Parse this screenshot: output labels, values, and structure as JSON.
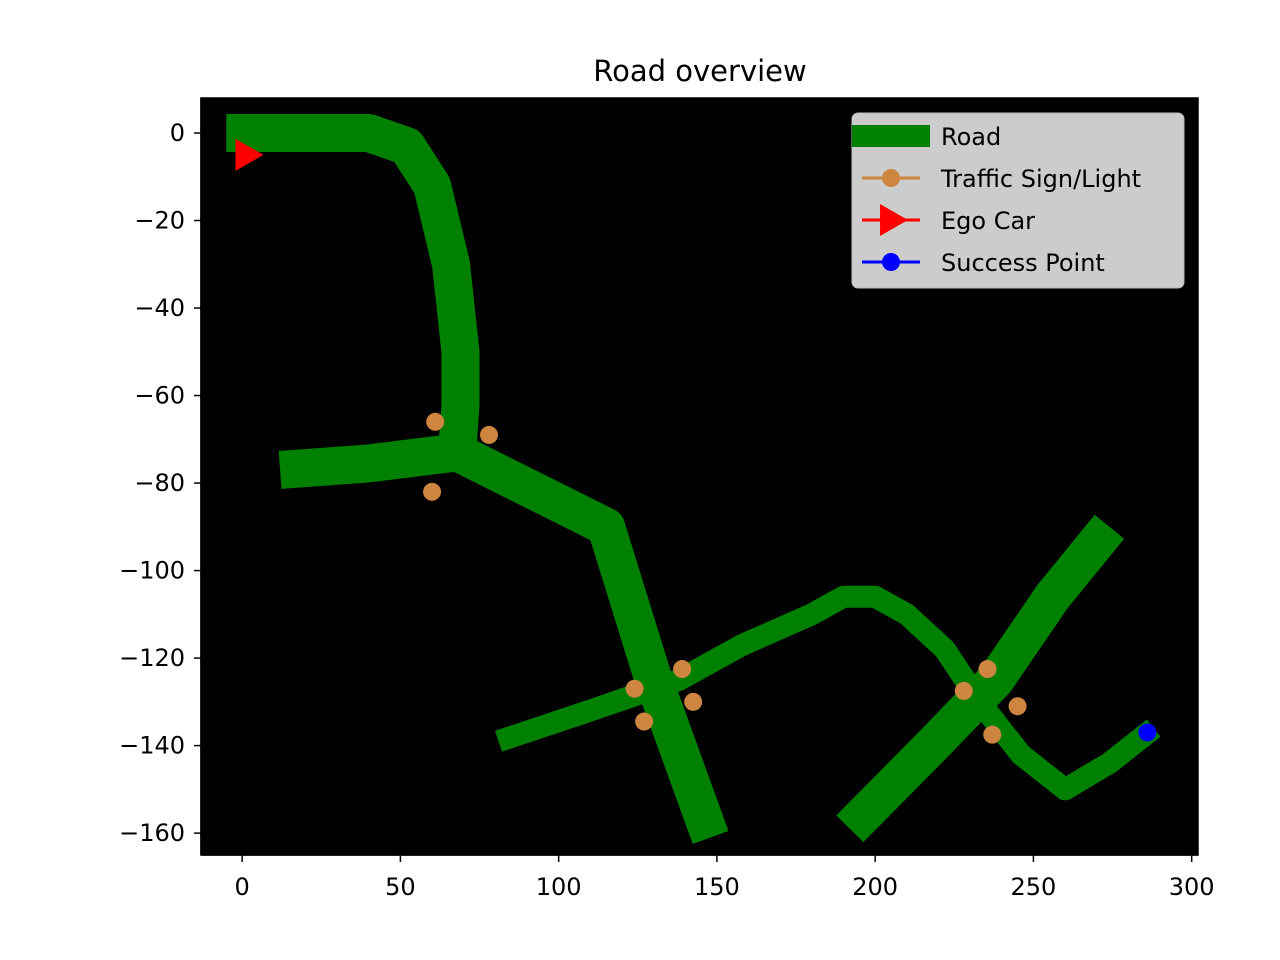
{
  "chart_data": {
    "type": "map",
    "title": "Road overview",
    "xlim": [
      -13,
      302
    ],
    "ylim": [
      -165,
      8
    ],
    "x_ticks": [
      0,
      50,
      100,
      150,
      200,
      250,
      300
    ],
    "y_ticks": [
      0,
      -20,
      -40,
      -60,
      -80,
      -100,
      -120,
      -140,
      -160
    ],
    "x_tick_labels": [
      "0",
      "50",
      "100",
      "150",
      "200",
      "250",
      "300"
    ],
    "y_tick_labels": [
      "0",
      "−20",
      "−40",
      "−60",
      "−80",
      "−100",
      "−120",
      "−140",
      "−160"
    ],
    "background_color": "#000000",
    "grid": false,
    "legend": {
      "position": "top-right",
      "entries": [
        {
          "label": "Road",
          "marker": "thick-line",
          "color": "#008000"
        },
        {
          "label": "Traffic Sign/Light",
          "marker": "line-circle",
          "color": "#cd853f"
        },
        {
          "label": "Ego Car",
          "marker": "line-triangle-right",
          "color": "#ff0000"
        },
        {
          "label": "Success Point",
          "marker": "line-circle",
          "color": "#0000ff"
        }
      ]
    },
    "roads": [
      {
        "width": "wide",
        "points": [
          [
            -5,
            0
          ],
          [
            40,
            0
          ],
          [
            52,
            -3
          ],
          [
            60,
            -12
          ],
          [
            66,
            -30
          ],
          [
            69,
            -50
          ],
          [
            69,
            -62
          ],
          [
            68,
            -72
          ]
        ]
      },
      {
        "width": "wide",
        "points": [
          [
            12,
            -77
          ],
          [
            40,
            -75.5
          ],
          [
            68,
            -73
          ],
          [
            115,
            -90
          ],
          [
            130,
            -125
          ],
          [
            148,
            -161
          ]
        ]
      },
      {
        "width": "wide",
        "points": [
          [
            192,
            -159
          ],
          [
            218,
            -140
          ],
          [
            238,
            -125
          ],
          [
            256,
            -106
          ],
          [
            274,
            -90
          ]
        ]
      },
      {
        "width": "narrow",
        "points": [
          [
            81,
            -139
          ],
          [
            110,
            -132
          ],
          [
            138,
            -125
          ],
          [
            158,
            -117
          ],
          [
            180,
            -110
          ],
          [
            190,
            -106
          ],
          [
            200,
            -106
          ],
          [
            210,
            -110
          ],
          [
            222,
            -118
          ],
          [
            233,
            -130
          ],
          [
            246,
            -142
          ],
          [
            260,
            -150
          ],
          [
            274,
            -144
          ],
          [
            288,
            -136
          ]
        ]
      }
    ],
    "traffic_signs": [
      [
        61,
        -66
      ],
      [
        78,
        -69
      ],
      [
        60,
        -82
      ],
      [
        124,
        -127
      ],
      [
        139,
        -122.5
      ],
      [
        127,
        -134.5
      ],
      [
        142.5,
        -130
      ],
      [
        228,
        -127.5
      ],
      [
        235.5,
        -122.5
      ],
      [
        245,
        -131
      ],
      [
        237,
        -137.5
      ]
    ],
    "ego_car": {
      "x": 2,
      "y": -5
    },
    "success_point": {
      "x": 286,
      "y": -137
    },
    "colors": {
      "road": "#008000",
      "traffic_sign": "#cd853f",
      "ego_car": "#ff0000",
      "success_point": "#0000ff",
      "legend_bg": "#cccccc"
    }
  }
}
